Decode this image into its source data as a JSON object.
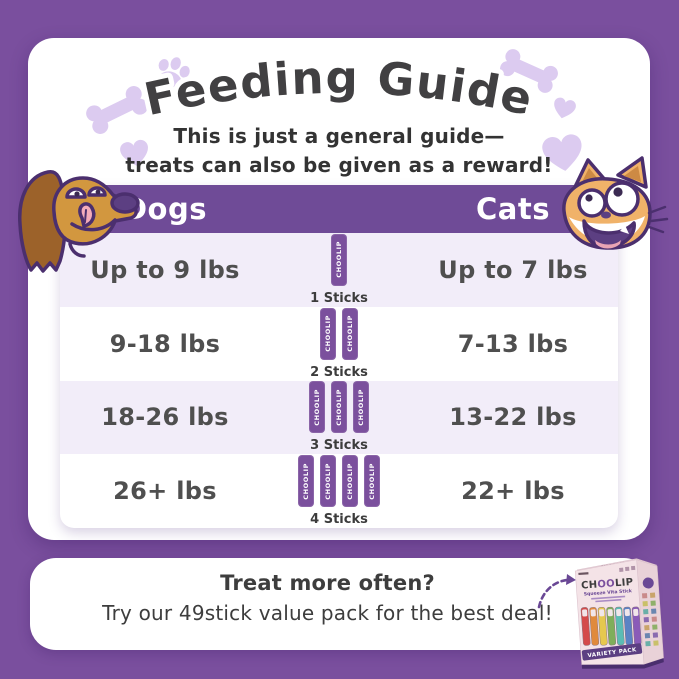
{
  "header": {
    "title": "Feeding Guide",
    "subtitle_line1": "This is just a general guide—",
    "subtitle_line2": "treats can also be given as a reward!"
  },
  "table": {
    "dogs_column_label": "Dogs",
    "cats_column_label": "Cats",
    "stick_text": "CHOOLIP",
    "rows": [
      {
        "dog_weight": "Up to 9 lbs",
        "sticks": 1,
        "sticks_label": "1 Sticks",
        "cat_weight": "Up to 7 lbs"
      },
      {
        "dog_weight": "9-18 lbs",
        "sticks": 2,
        "sticks_label": "2 Sticks",
        "cat_weight": "7-13 lbs"
      },
      {
        "dog_weight": "18-26 lbs",
        "sticks": 3,
        "sticks_label": "3 Sticks",
        "cat_weight": "13-22 lbs"
      },
      {
        "dog_weight": "26+ lbs",
        "sticks": 4,
        "sticks_label": "4 Sticks",
        "cat_weight": "22+ lbs"
      }
    ]
  },
  "footer": {
    "headline": "Treat more often?",
    "subline": "Try our 49stick value pack for the best deal!"
  },
  "product_box": {
    "brand": "CHOOLIP",
    "brand_parts": [
      "CH",
      "OO",
      "LIP"
    ],
    "product": "Squeeze Vita Stick",
    "badge": "VARIETY PACK"
  },
  "colors": {
    "background": "#7a4f9e",
    "card": "#ffffff",
    "header_bar": "#6f4b97",
    "row_alt": "#f2edf9",
    "stick": "#7b509d",
    "text_dark": "#414042",
    "lavender_decor": "#dccbf0",
    "accent_purple": "#6a4895"
  }
}
